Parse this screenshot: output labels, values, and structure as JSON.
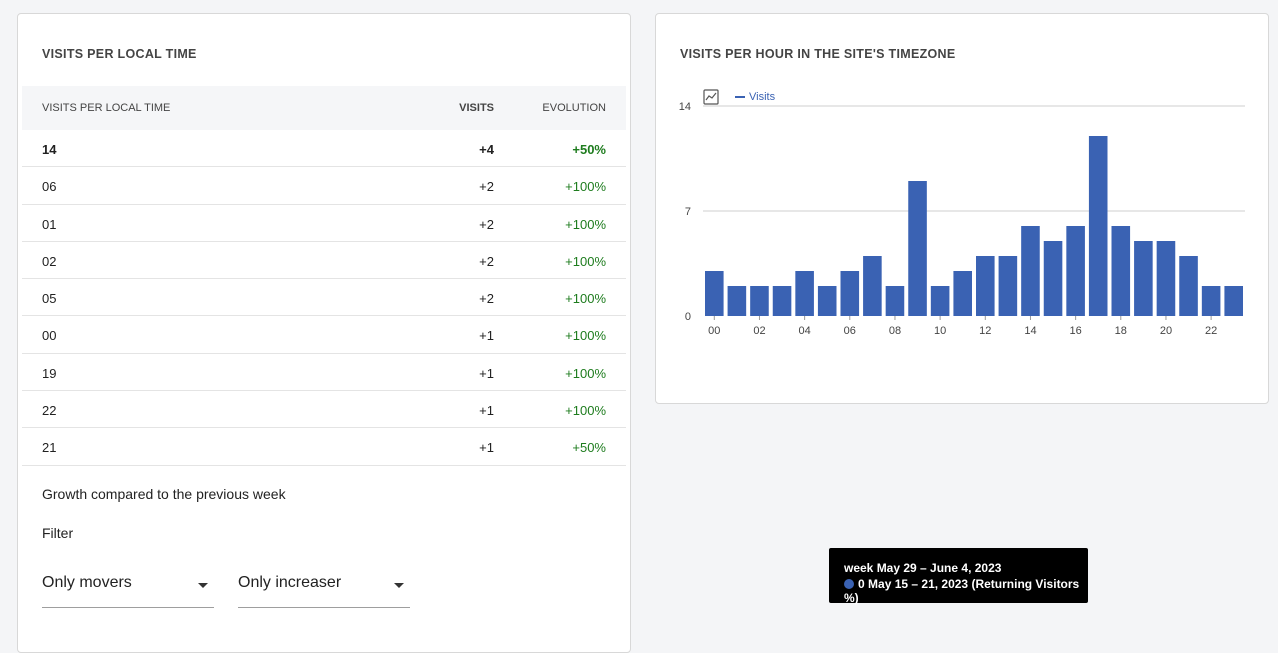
{
  "left_card": {
    "title": "VISITS PER LOCAL TIME",
    "table": {
      "headers": {
        "label": "VISITS PER LOCAL TIME",
        "visits": "VISITS",
        "evolution": "EVOLUTION"
      },
      "rows": [
        {
          "label": "14",
          "visits": "+4",
          "evolution": "+50%"
        },
        {
          "label": "06",
          "visits": "+2",
          "evolution": "+100%"
        },
        {
          "label": "01",
          "visits": "+2",
          "evolution": "+100%"
        },
        {
          "label": "02",
          "visits": "+2",
          "evolution": "+100%"
        },
        {
          "label": "05",
          "visits": "+2",
          "evolution": "+100%"
        },
        {
          "label": "00",
          "visits": "+1",
          "evolution": "+100%"
        },
        {
          "label": "19",
          "visits": "+1",
          "evolution": "+100%"
        },
        {
          "label": "22",
          "visits": "+1",
          "evolution": "+100%"
        },
        {
          "label": "21",
          "visits": "+1",
          "evolution": "+50%"
        }
      ]
    },
    "growth_text": "Growth compared to the previous week",
    "filter_label": "Filter",
    "filters": [
      {
        "value": "Only movers"
      },
      {
        "value": "Only increaser"
      }
    ]
  },
  "right_card": {
    "title": "VISITS PER HOUR IN THE SITE'S TIMEZONE",
    "legend_label": "Visits",
    "legend_icon": "line-chart-icon"
  },
  "chart_data": {
    "type": "bar",
    "title": "VISITS PER HOUR IN THE SITE'S TIMEZONE",
    "categories": [
      "00",
      "01",
      "02",
      "03",
      "04",
      "05",
      "06",
      "07",
      "08",
      "09",
      "10",
      "11",
      "12",
      "13",
      "14",
      "15",
      "16",
      "17",
      "18",
      "19",
      "20",
      "21",
      "22",
      "23"
    ],
    "series": [
      {
        "name": "Visits",
        "values": [
          3,
          2,
          2,
          2,
          3,
          2,
          3,
          4,
          2,
          9,
          2,
          3,
          4,
          4,
          6,
          5,
          6,
          12,
          6,
          5,
          5,
          4,
          2,
          2
        ]
      }
    ],
    "x_tick_labels": [
      "00",
      "02",
      "04",
      "06",
      "08",
      "10",
      "12",
      "14",
      "16",
      "18",
      "20",
      "22"
    ],
    "y_ticks": [
      0,
      7,
      14
    ],
    "ylim": [
      0,
      14
    ],
    "grid": true,
    "legend_placement": "top-left",
    "bar_color": "#3a62b3"
  },
  "tooltip": {
    "line1": "week May 29 – June 4, 2023",
    "value": "0",
    "line2": "May 15 – 21, 2023 (Returning Visitors %)"
  }
}
